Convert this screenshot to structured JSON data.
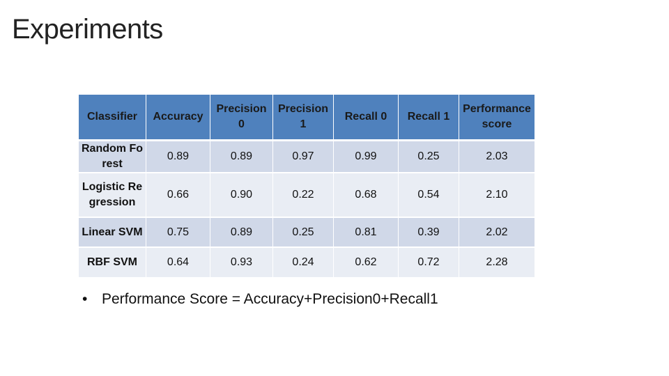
{
  "slide": {
    "title": "Experiments"
  },
  "table": {
    "headers": [
      "Classifier",
      "Accuracy",
      "Precision 0",
      "Precision 1",
      "Recall 0",
      "Recall 1",
      "Performance score"
    ],
    "rows": [
      {
        "name": "Random Forest",
        "values": [
          "0.89",
          "0.89",
          "0.97",
          "0.99",
          "0.25",
          "2.03"
        ]
      },
      {
        "name": "Logistic Regression",
        "values": [
          "0.66",
          "0.90",
          "0.22",
          "0.68",
          "0.54",
          "2.10"
        ]
      },
      {
        "name": "Linear SVM",
        "values": [
          "0.75",
          "0.89",
          "0.25",
          "0.81",
          "0.39",
          "2.02"
        ]
      },
      {
        "name": "RBF SVM",
        "values": [
          "0.64",
          "0.93",
          "0.24",
          "0.62",
          "0.72",
          "2.28"
        ]
      }
    ],
    "colors": {
      "header_bg": "#4f81bd",
      "row_dark": "#d0d8e8",
      "row_light": "#e9edf4",
      "highlight": "#d40000"
    }
  },
  "note": {
    "bullet": "•",
    "text": "Performance Score = Accuracy+Precision0+Recall1"
  }
}
